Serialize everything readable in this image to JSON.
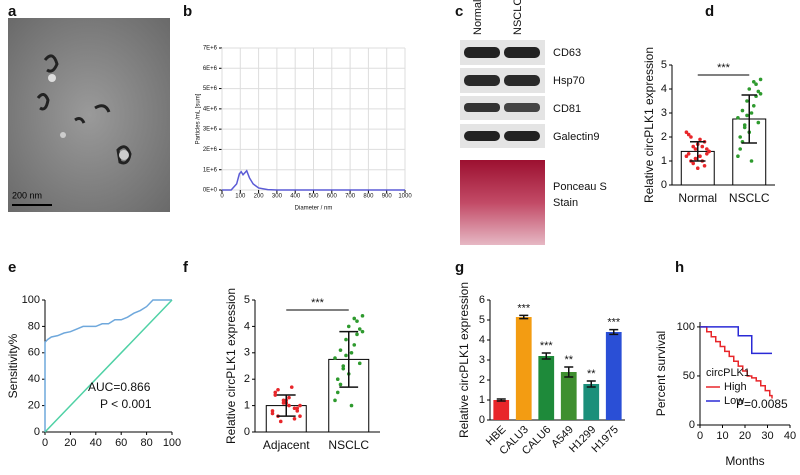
{
  "panels": {
    "letters": [
      "a",
      "b",
      "c",
      "d",
      "e",
      "f",
      "g",
      "h"
    ]
  },
  "tem": {
    "scale_bar": "200 nm"
  },
  "blot": {
    "lanes": [
      "Normal",
      "NSCLC"
    ],
    "proteins": [
      "CD63",
      "Hsp70",
      "CD81",
      "Galectin9"
    ],
    "stain": [
      "Ponceau S",
      "Stain"
    ]
  },
  "chart_data": [
    {
      "type": "line",
      "ylabel": "Particles /mL [sum]",
      "xlabel": "Diameter / nm",
      "series": [
        {
          "color": "#5b5bd6",
          "x": [
            0,
            50,
            80,
            95,
            105,
            115,
            125,
            135,
            150,
            170,
            200,
            250,
            300,
            400,
            500,
            600,
            700,
            800,
            900,
            1000
          ],
          "values": [
            0,
            0,
            300000,
            800000,
            900000,
            750000,
            850000,
            950000,
            600000,
            300000,
            100000,
            20000,
            0,
            0,
            0,
            0,
            0,
            0,
            0,
            0
          ]
        }
      ],
      "xlim": [
        0,
        1000
      ],
      "xticks": [
        0,
        100,
        200,
        300,
        400,
        500,
        600,
        700,
        800,
        900,
        1000
      ],
      "ylim": [
        0,
        7000000
      ],
      "yticks": [
        {
          "value": 0,
          "label": "0E+0"
        },
        {
          "value": 1000000,
          "label": "1E+6"
        },
        {
          "value": 2000000,
          "label": "2E+6"
        },
        {
          "value": 3000000,
          "label": "3E+6"
        },
        {
          "value": 4000000,
          "label": "4E+6"
        },
        {
          "value": 5000000,
          "label": "5E+6"
        },
        {
          "value": 6000000,
          "label": "6E+6"
        },
        {
          "value": 7000000,
          "label": "7E+6"
        }
      ],
      "grid": true
    },
    {
      "type": "dot-bar",
      "ylabel": "Relative circPLK1 expression",
      "categories": [
        "Normal",
        "NSCLC"
      ],
      "values": [
        1.4,
        2.75
      ],
      "errors": [
        0.4,
        1.0
      ],
      "colors": [
        "#e8262a",
        "#2e9a2e"
      ],
      "points": [
        [
          1.2,
          1.5,
          0.8,
          2.1,
          1.7,
          1.3,
          1.0,
          1.9,
          1.4,
          0.9,
          1.6,
          2.2,
          1.1,
          1.8,
          1.3,
          0.7,
          1.5,
          2.0,
          1.2,
          1.4,
          1.6,
          1.0
        ],
        [
          2.8,
          3.5,
          4.2,
          1.5,
          2.2,
          3.9,
          1.8,
          3.0,
          4.4,
          2.5,
          3.3,
          1.2,
          2.9,
          3.7,
          2.0,
          4.0,
          2.6,
          3.1,
          1.0,
          3.8,
          2.4,
          4.3
        ]
      ],
      "significance": "***",
      "ylim": [
        0,
        5
      ],
      "yticks": [
        0,
        1,
        2,
        3,
        4,
        5
      ]
    },
    {
      "type": "line",
      "ylabel": "Sensitivity%",
      "annotations": [
        "AUC=0.866",
        "P < 0.001"
      ],
      "series": [
        {
          "color": "#6fa8dc",
          "x": [
            0,
            0,
            2,
            5,
            10,
            15,
            20,
            25,
            30,
            40,
            45,
            50,
            55,
            60,
            65,
            70,
            75,
            80,
            85,
            100
          ],
          "values": [
            0,
            68,
            70,
            72,
            73,
            75,
            76,
            78,
            80,
            80,
            82,
            82,
            85,
            85,
            87,
            90,
            92,
            95,
            100,
            100
          ]
        },
        {
          "color": "#4fd1a5",
          "x": [
            0,
            100
          ],
          "values": [
            0,
            100
          ]
        }
      ],
      "xlim": [
        0,
        100
      ],
      "xticks": [
        0,
        20,
        40,
        60,
        80,
        100
      ],
      "ylim": [
        0,
        100
      ],
      "yticks": [
        0,
        20,
        40,
        60,
        80,
        100
      ]
    },
    {
      "type": "dot-bar",
      "ylabel": "Relative circPLK1 expression",
      "categories": [
        "Adjacent",
        "NSCLC"
      ],
      "values": [
        1.0,
        2.75
      ],
      "errors": [
        0.4,
        1.05
      ],
      "colors": [
        "#e8262a",
        "#2e9a2e"
      ],
      "points": [
        [
          0.8,
          1.1,
          0.5,
          1.5,
          1.2,
          0.9,
          0.6,
          1.3,
          1.0,
          0.4,
          1.7,
          0.7,
          1.2,
          0.9,
          1.4,
          1.1,
          0.8,
          1.6,
          1.0,
          0.6
        ],
        [
          2.8,
          3.5,
          4.2,
          1.5,
          2.2,
          3.9,
          1.8,
          3.0,
          4.4,
          2.5,
          3.3,
          1.2,
          2.9,
          3.7,
          2.0,
          4.0,
          2.6,
          3.1,
          1.0,
          3.8,
          2.4,
          4.3
        ]
      ],
      "significance": "***",
      "ylim": [
        0,
        5
      ],
      "yticks": [
        0,
        1,
        2,
        3,
        4,
        5
      ]
    },
    {
      "type": "bar",
      "ylabel": "Relative circPLK1 expression",
      "categories": [
        "HBE",
        "CALU3",
        "CALU6",
        "A549",
        "H1299",
        "H1975"
      ],
      "values": [
        1.0,
        5.15,
        3.2,
        2.4,
        1.8,
        4.4
      ],
      "errors": [
        0.05,
        0.08,
        0.15,
        0.25,
        0.15,
        0.12
      ],
      "colors": [
        "#e8262a",
        "#f39c12",
        "#1e8a3a",
        "#3f8f2f",
        "#1b8f7a",
        "#2a4fd6"
      ],
      "significance": [
        null,
        "***",
        "***",
        "**",
        "**",
        "***"
      ],
      "ylim": [
        0,
        6
      ],
      "yticks": [
        0,
        1,
        2,
        3,
        4,
        5,
        6
      ]
    },
    {
      "type": "step",
      "ylabel": "Percent survival",
      "xlabel": "Months",
      "legend_title": "circPLK1",
      "legend": "lower left",
      "annotations": [
        "P=0.0085"
      ],
      "series": [
        {
          "name": "High",
          "color": "#e8262a",
          "x": [
            0,
            3,
            5,
            7,
            9,
            11,
            13,
            15,
            17,
            19,
            21,
            23,
            25,
            27,
            29,
            31,
            32
          ],
          "values": [
            100,
            95,
            90,
            85,
            80,
            75,
            70,
            65,
            60,
            55,
            50,
            48,
            45,
            40,
            35,
            30,
            27
          ]
        },
        {
          "name": "Low",
          "color": "#2a2ad6",
          "x": [
            0,
            15,
            17,
            22,
            23,
            32
          ],
          "values": [
            100,
            100,
            91,
            91,
            73,
            73
          ]
        }
      ],
      "xlim": [
        0,
        40
      ],
      "xticks": [
        0,
        10,
        20,
        30,
        40
      ],
      "ylim": [
        0,
        105
      ],
      "yticks": [
        0,
        50,
        100
      ]
    }
  ]
}
